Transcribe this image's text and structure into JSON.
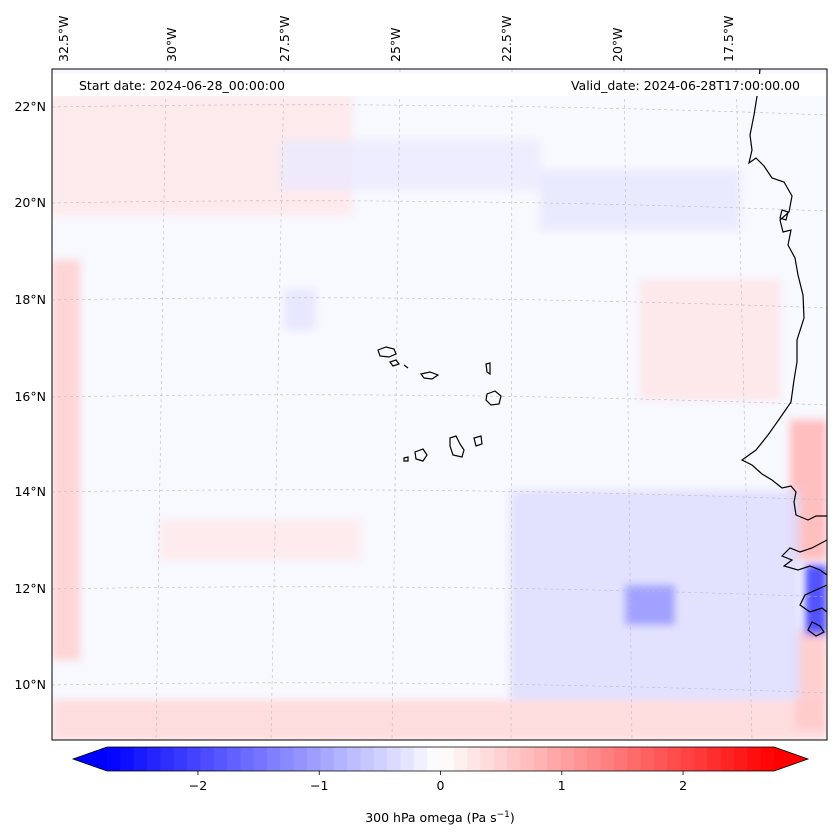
{
  "map": {
    "start_label": "Start date: 2024-06-28_00:00:00",
    "valid_label": "Valid_date: 2024-06-28T17:00:00.00",
    "lon_ticks": [
      "32.5°W",
      "30°W",
      "27.5°W",
      "25°W",
      "22.5°W",
      "20°W",
      "17.5°W"
    ],
    "lat_ticks": [
      "22°N",
      "20°N",
      "18°N",
      "16°N",
      "14°N",
      "12°N",
      "10°N"
    ],
    "colorbar_label": "300 hPa omega (Pa s",
    "colorbar_label_exp": "−1",
    "colorbar_label_end": ")",
    "colorbar_ticks": [
      "−2",
      "−1",
      "0",
      "1",
      "2"
    ],
    "colorbar_values": [
      -2,
      -1,
      0,
      1,
      2
    ],
    "colorbar_range": [
      -2.75,
      2.75
    ]
  },
  "colors": {
    "min": "#0000ff",
    "zero": "#ffffff",
    "max": "#ff0000",
    "coast": "#000000",
    "grid": "#bbbbbb"
  }
}
